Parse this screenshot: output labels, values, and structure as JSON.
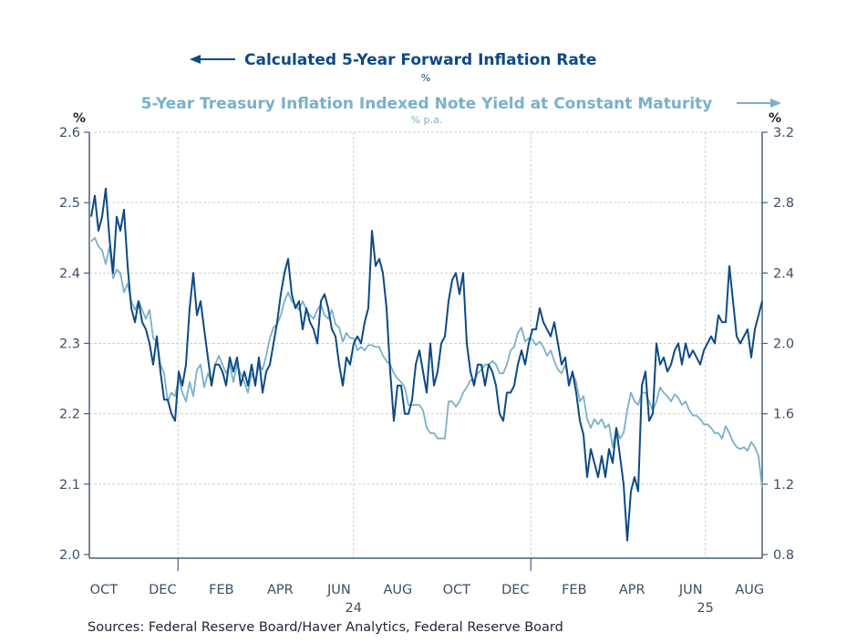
{
  "chart_data": {
    "type": "line",
    "x_start": "2023-10-01",
    "x_end": "2025-08-29",
    "series": [
      {
        "name": "Calculated 5-Year Forward Inflation Rate",
        "unit": "%",
        "axis": "left",
        "color": "#0d4a84",
        "values": [
          2.48,
          2.51,
          2.46,
          2.48,
          2.52,
          2.45,
          2.4,
          2.48,
          2.46,
          2.49,
          2.41,
          2.35,
          2.33,
          2.36,
          2.33,
          2.32,
          2.3,
          2.27,
          2.31,
          2.26,
          2.22,
          2.22,
          2.2,
          2.19,
          2.26,
          2.24,
          2.27,
          2.35,
          2.4,
          2.34,
          2.36,
          2.32,
          2.28,
          2.24,
          2.27,
          2.27,
          2.26,
          2.24,
          2.28,
          2.26,
          2.28,
          2.24,
          2.26,
          2.24,
          2.27,
          2.24,
          2.28,
          2.23,
          2.26,
          2.27,
          2.3,
          2.33,
          2.37,
          2.4,
          2.42,
          2.37,
          2.35,
          2.36,
          2.32,
          2.35,
          2.33,
          2.32,
          2.3,
          2.36,
          2.37,
          2.35,
          2.32,
          2.31,
          2.27,
          2.24,
          2.28,
          2.27,
          2.3,
          2.31,
          2.3,
          2.33,
          2.35,
          2.46,
          2.41,
          2.42,
          2.4,
          2.35,
          2.26,
          2.19,
          2.24,
          2.24,
          2.2,
          2.2,
          2.22,
          2.27,
          2.29,
          2.26,
          2.23,
          2.3,
          2.24,
          2.26,
          2.3,
          2.31,
          2.36,
          2.39,
          2.4,
          2.37,
          2.4,
          2.3,
          2.26,
          2.24,
          2.27,
          2.27,
          2.24,
          2.27,
          2.26,
          2.24,
          2.2,
          2.19,
          2.23,
          2.23,
          2.24,
          2.27,
          2.29,
          2.27,
          2.3,
          2.32,
          2.32,
          2.35,
          2.33,
          2.32,
          2.31,
          2.33,
          2.3,
          2.27,
          2.28,
          2.24,
          2.26,
          2.23,
          2.19,
          2.17,
          2.11,
          2.15,
          2.13,
          2.11,
          2.14,
          2.11,
          2.15,
          2.13,
          2.18,
          2.14,
          2.1,
          2.02,
          2.09,
          2.11,
          2.09,
          2.24,
          2.26,
          2.19,
          2.2,
          2.3,
          2.27,
          2.28,
          2.26,
          2.27,
          2.29,
          2.3,
          2.27,
          2.3,
          2.28,
          2.29,
          2.28,
          2.27,
          2.29,
          2.3,
          2.31,
          2.3,
          2.34,
          2.33,
          2.33,
          2.41,
          2.36,
          2.31,
          2.3,
          2.31,
          2.32,
          2.28,
          2.32,
          2.34,
          2.36
        ]
      },
      {
        "name": "5-Year Treasury Inflation Indexed Note Yield at Constant Maturity",
        "unit": "% p.a.",
        "axis": "right",
        "color": "#79b1c8",
        "values": [
          2.58,
          2.6,
          2.55,
          2.53,
          2.45,
          2.55,
          2.37,
          2.42,
          2.4,
          2.29,
          2.34,
          2.24,
          2.19,
          2.24,
          2.19,
          2.14,
          2.19,
          2.03,
          2.01,
          1.88,
          1.83,
          1.67,
          1.72,
          1.7,
          1.8,
          1.72,
          1.67,
          1.78,
          1.7,
          1.85,
          1.88,
          1.75,
          1.83,
          1.78,
          1.88,
          1.93,
          1.88,
          1.83,
          1.88,
          1.78,
          1.88,
          1.83,
          1.78,
          1.72,
          1.83,
          1.78,
          1.88,
          1.85,
          1.93,
          2.03,
          2.09,
          2.11,
          2.16,
          2.24,
          2.29,
          2.24,
          2.22,
          2.19,
          2.24,
          2.19,
          2.16,
          2.14,
          2.19,
          2.22,
          2.16,
          2.14,
          2.19,
          2.11,
          2.09,
          2.01,
          2.06,
          2.03,
          2.03,
          1.96,
          1.98,
          1.96,
          1.99,
          1.99,
          1.98,
          1.98,
          1.93,
          1.9,
          1.88,
          1.83,
          1.8,
          1.78,
          1.75,
          1.65,
          1.65,
          1.65,
          1.65,
          1.62,
          1.52,
          1.49,
          1.49,
          1.46,
          1.46,
          1.46,
          1.67,
          1.67,
          1.64,
          1.67,
          1.72,
          1.75,
          1.79,
          1.79,
          1.83,
          1.85,
          1.88,
          1.88,
          1.9,
          1.88,
          1.83,
          1.83,
          1.88,
          1.96,
          1.98,
          2.06,
          2.09,
          2.01,
          2.03,
          2.02,
          1.99,
          2.01,
          1.98,
          1.93,
          1.96,
          1.9,
          1.85,
          1.83,
          1.88,
          1.78,
          1.83,
          1.78,
          1.67,
          1.7,
          1.57,
          1.52,
          1.57,
          1.54,
          1.57,
          1.52,
          1.54,
          1.41,
          1.52,
          1.46,
          1.49,
          1.62,
          1.72,
          1.67,
          1.65,
          1.72,
          1.72,
          1.67,
          1.62,
          1.67,
          1.75,
          1.72,
          1.7,
          1.67,
          1.71,
          1.69,
          1.65,
          1.67,
          1.62,
          1.59,
          1.59,
          1.57,
          1.54,
          1.54,
          1.52,
          1.49,
          1.49,
          1.46,
          1.53,
          1.49,
          1.44,
          1.41,
          1.4,
          1.41,
          1.39,
          1.44,
          1.41,
          1.36,
          1.18
        ]
      }
    ],
    "left_axis": {
      "label": "%",
      "ylim": [
        2.0,
        2.6
      ],
      "ticks": [
        "2.0",
        "2.1",
        "2.2",
        "2.3",
        "2.4",
        "2.5",
        "2.6"
      ]
    },
    "right_axis": {
      "label": "%",
      "ylim": [
        0.8,
        3.2
      ],
      "ticks": [
        "0.8",
        "1.2",
        "1.6",
        "2.0",
        "2.4",
        "2.8",
        "3.2"
      ]
    },
    "x_ticks": [
      {
        "label": "OCT",
        "date": "2023-10-16"
      },
      {
        "label": "DEC",
        "date": "2023-12-16"
      },
      {
        "label": "FEB",
        "date": "2024-02-15"
      },
      {
        "label": "APR",
        "date": "2024-04-16"
      },
      {
        "label": "JUN",
        "date": "2024-06-16"
      },
      {
        "label": "AUG",
        "date": "2024-08-16"
      },
      {
        "label": "OCT",
        "date": "2024-10-16"
      },
      {
        "label": "DEC",
        "date": "2024-12-16"
      },
      {
        "label": "FEB",
        "date": "2025-02-15"
      },
      {
        "label": "APR",
        "date": "2025-04-16"
      },
      {
        "label": "JUN",
        "date": "2025-06-16"
      },
      {
        "label": "AUG",
        "date": "2025-08-16"
      }
    ],
    "year_labels": [
      {
        "label": "24",
        "date": "2024-07-01"
      },
      {
        "label": "25",
        "date": "2025-07-01"
      }
    ],
    "vertical_grid_dates": [
      "2024-01-01",
      "2024-07-01",
      "2025-01-01",
      "2025-07-01"
    ],
    "grid": true
  },
  "legend": {
    "left_title": "Calculated 5-Year Forward Inflation Rate",
    "left_unit": "%",
    "right_title": "5-Year Treasury Inflation Indexed Note Yield at Constant Maturity",
    "right_unit": "% p.a."
  },
  "source": "Sources:  Federal Reserve Board/Haver Analytics, Federal Reserve Board"
}
